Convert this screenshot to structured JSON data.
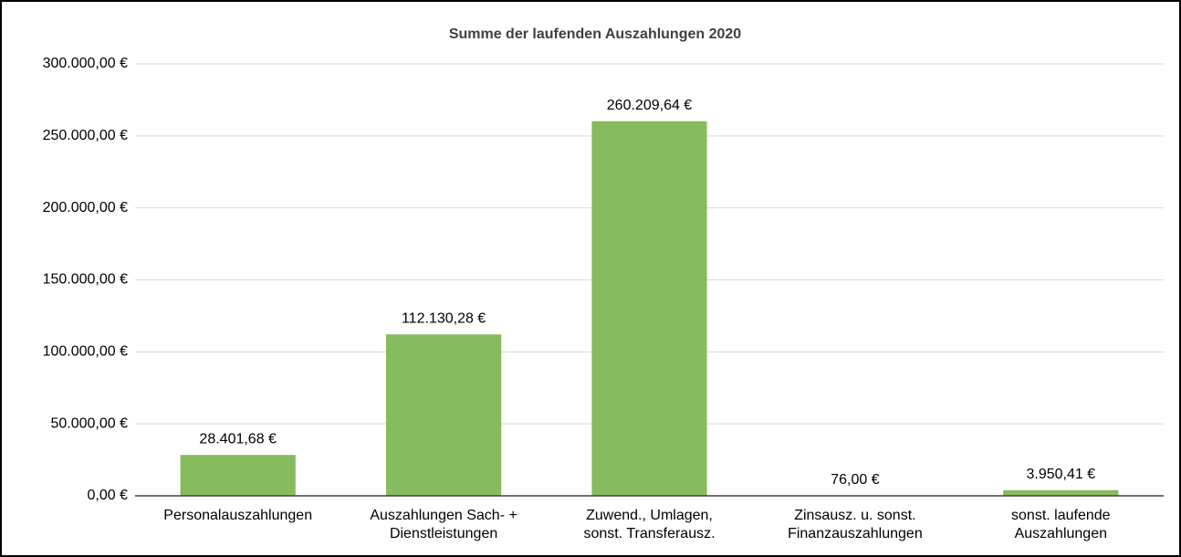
{
  "chart_data": {
    "type": "bar",
    "title": "Summe der laufenden Auszahlungen 2020",
    "categories": [
      [
        "Personalauszahlungen"
      ],
      [
        "Auszahlungen Sach- +",
        "Dienstleistungen"
      ],
      [
        "Zuwend., Umlagen,",
        "sonst. Transferausz."
      ],
      [
        "Zinsausz. u. sonst.",
        "Finanzauszahlungen"
      ],
      [
        "sonst. laufende",
        "Auszahlungen"
      ]
    ],
    "values": [
      28401.68,
      112130.28,
      260209.64,
      76,
      3950.41
    ],
    "value_labels": [
      "28.401,68 €",
      "112.130,28 €",
      "260.209,64 €",
      "76,00 €",
      "3.950,41 €"
    ],
    "color": "#86bc5e",
    "ylim": [
      0,
      300000
    ],
    "yticks": [
      {
        "value": 0,
        "label": "0,00 €"
      },
      {
        "value": 50000,
        "label": "50.000,00 €"
      },
      {
        "value": 100000,
        "label": "100.000,00 €"
      },
      {
        "value": 150000,
        "label": "150.000,00 €"
      },
      {
        "value": 200000,
        "label": "200.000,00 €"
      },
      {
        "value": 250000,
        "label": "250.000,00 €"
      },
      {
        "value": 300000,
        "label": "300.000,00 €"
      }
    ],
    "grid": true
  }
}
